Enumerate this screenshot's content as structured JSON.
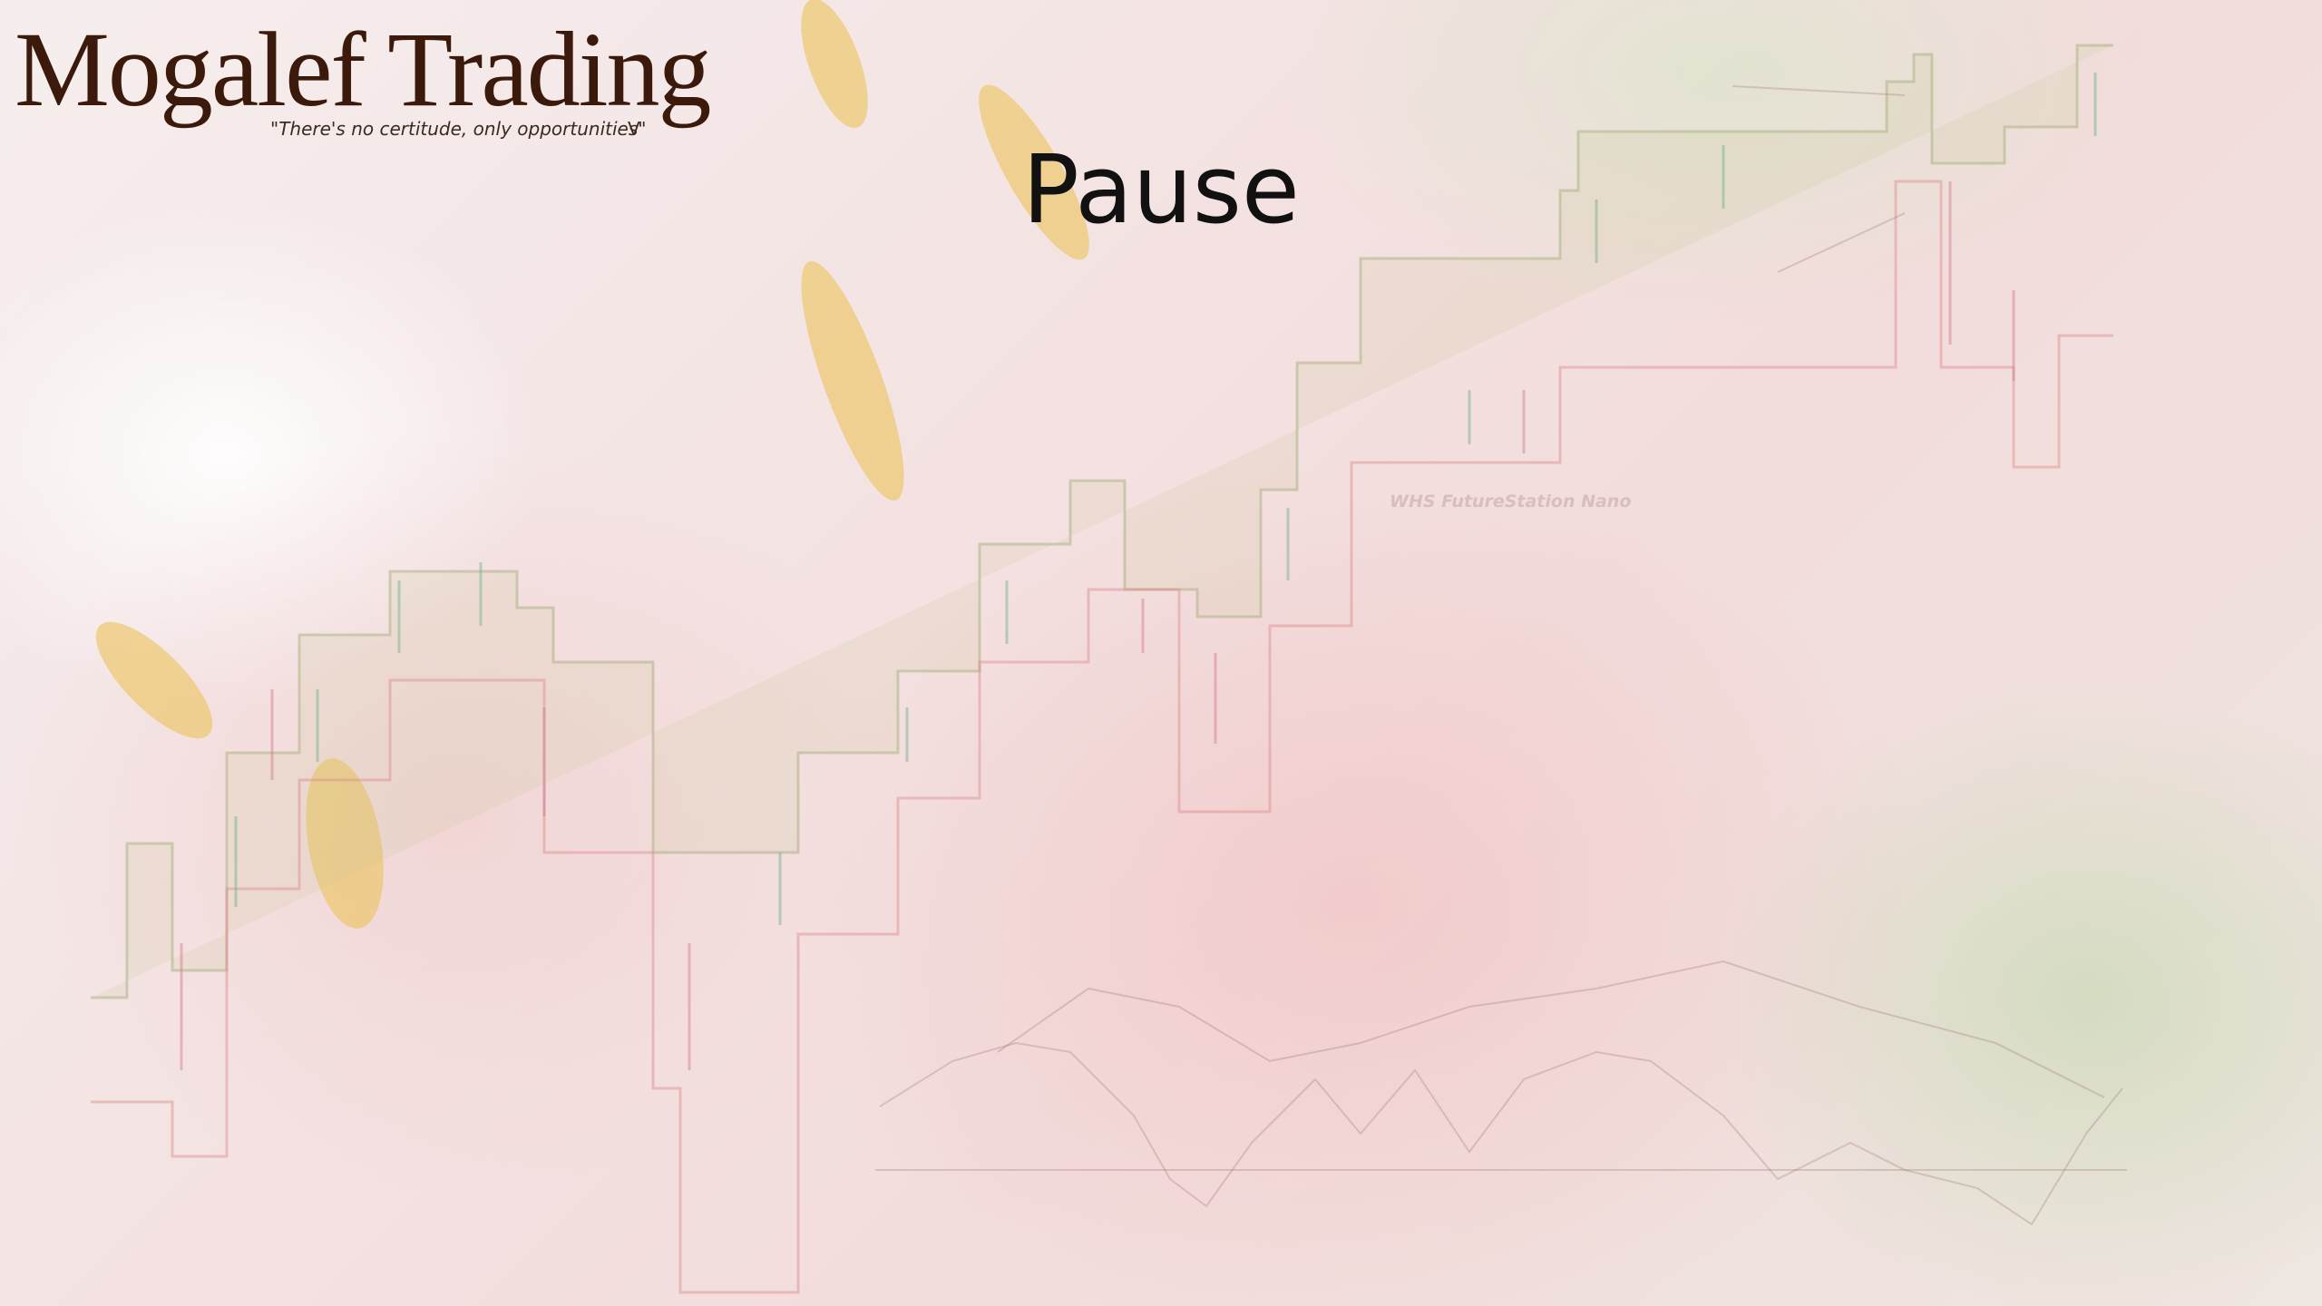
{
  "logo": {
    "title": "Mogalef Trading",
    "tagline": "\"There's no certitude, only opportunities\"",
    "mark": "V"
  },
  "slide": {
    "title": "Pause",
    "watermark": "WHS FutureStation Nano"
  }
}
